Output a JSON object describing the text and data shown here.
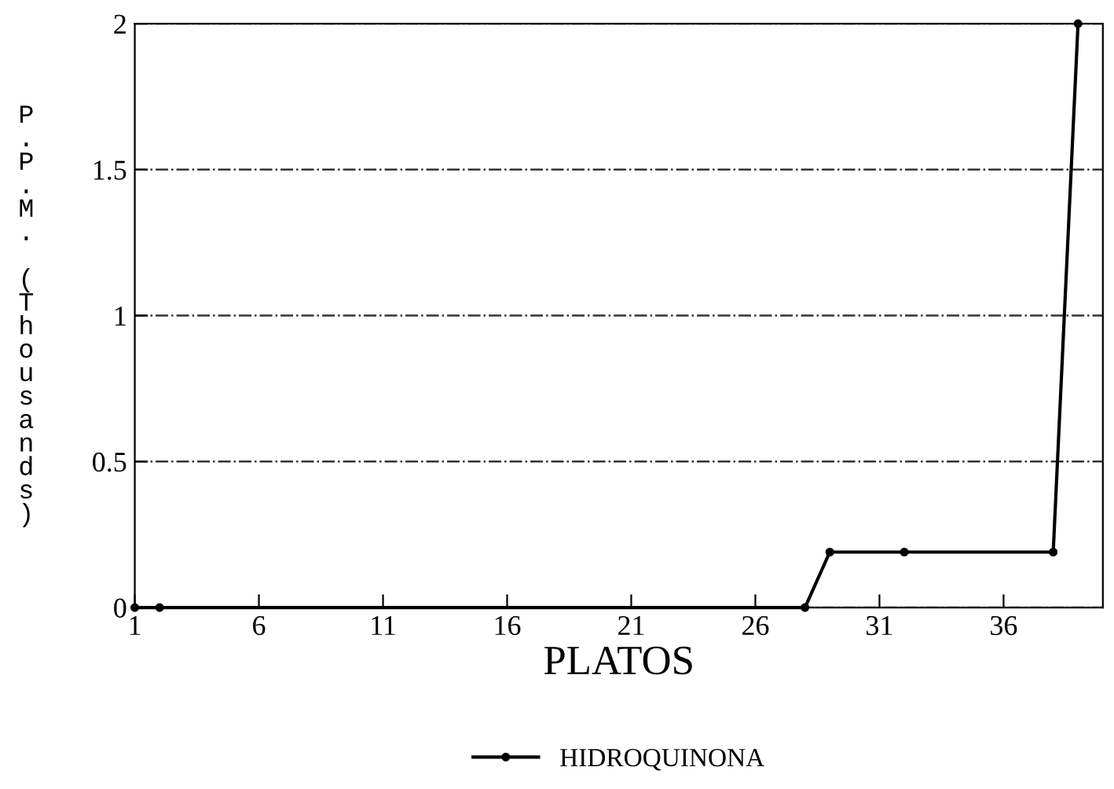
{
  "chart_data": {
    "type": "line",
    "xlabel": "PLATOS",
    "ylabel": "P.P.M. (Thousands)",
    "xlim": [
      1,
      40
    ],
    "xticks": [
      1,
      6,
      11,
      16,
      21,
      26,
      31,
      36
    ],
    "ylim": [
      0,
      2
    ],
    "yticks": [
      0,
      0.5,
      1,
      1.5,
      2
    ],
    "grid": "y",
    "legend": "bottom",
    "marker": "circle",
    "line_style": "solid",
    "series": [
      {
        "name": "HIDROQUINONA",
        "color": "#000000",
        "x": [
          1,
          2,
          28,
          29,
          32,
          38,
          39
        ],
        "values": [
          0,
          0,
          0,
          0.19,
          0.19,
          0.19,
          2
        ]
      }
    ]
  }
}
